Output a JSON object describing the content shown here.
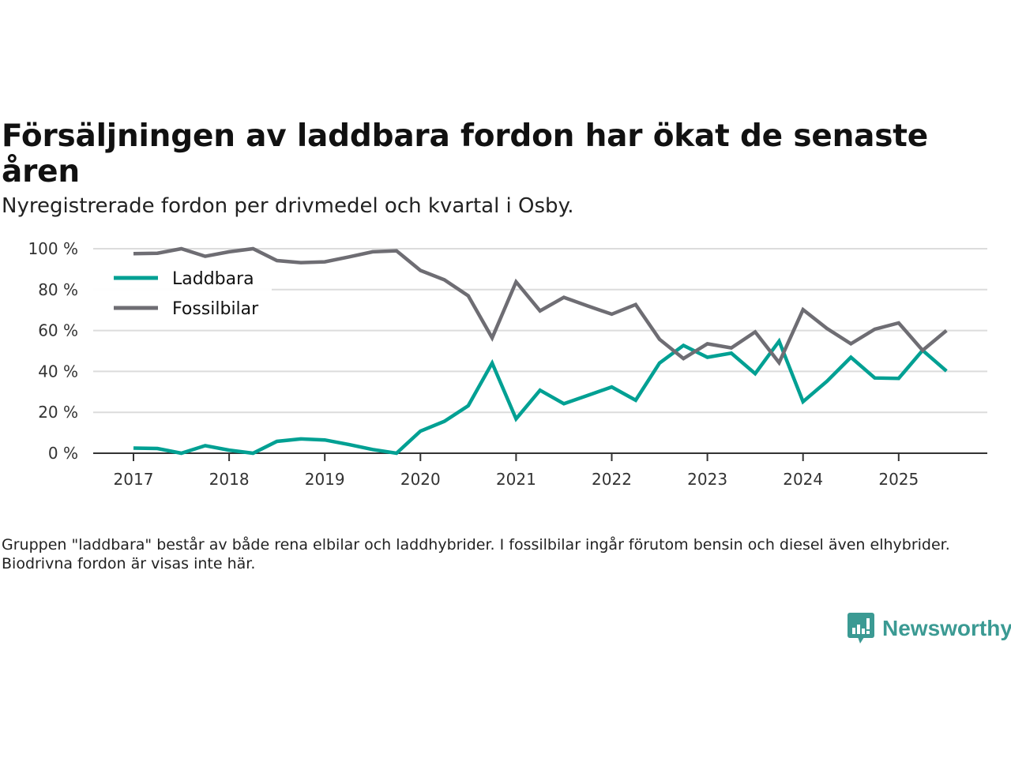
{
  "title": "Försäljningen av laddbara fordon har ökat de senaste åren",
  "subtitle": "Nyregistrerade fordon per drivmedel och kvartal i Osby.",
  "footnote": "Gruppen \"laddbara\" består av både rena elbilar och laddhybrider. I fossilbilar ingår förutom bensin och diesel även elhybrider. Biodrivna fordon är visas inte här.",
  "logo": {
    "text": "Newsworthy",
    "icon": "newsworthy-chart-bubble-icon",
    "color": "#3b9a93"
  },
  "chart_data": {
    "type": "line",
    "title": "Försäljningen av laddbara fordon har ökat de senaste åren",
    "subtitle": "Nyregistrerade fordon per drivmedel och kvartal i Osby.",
    "xlabel": "",
    "ylabel": "",
    "x": [
      "2017-Q1",
      "2017-Q2",
      "2017-Q3",
      "2017-Q4",
      "2018-Q1",
      "2018-Q2",
      "2018-Q3",
      "2018-Q4",
      "2019-Q1",
      "2019-Q2",
      "2019-Q3",
      "2019-Q4",
      "2020-Q1",
      "2020-Q2",
      "2020-Q3",
      "2020-Q4",
      "2021-Q1",
      "2021-Q2",
      "2021-Q3",
      "2021-Q4",
      "2022-Q1",
      "2022-Q2",
      "2022-Q3",
      "2022-Q4",
      "2023-Q1",
      "2023-Q2",
      "2023-Q3",
      "2023-Q4",
      "2024-Q1",
      "2024-Q2",
      "2024-Q3",
      "2024-Q4",
      "2025-Q1",
      "2025-Q2",
      "2025-Q3"
    ],
    "xticks": [
      "2017",
      "2018",
      "2019",
      "2020",
      "2021",
      "2022",
      "2023",
      "2024",
      "2025"
    ],
    "yticks": [
      "0 %",
      "20 %",
      "40 %",
      "60 %",
      "80 %",
      "100 %"
    ],
    "ytick_values": [
      0,
      20,
      40,
      60,
      80,
      100
    ],
    "ylim": [
      0,
      100
    ],
    "grid": true,
    "legend_position": "top-left",
    "series": [
      {
        "name": "Laddbara",
        "color": "#00a093",
        "values": [
          2.5,
          2.3,
          0,
          3.7,
          1.5,
          0,
          5.8,
          7.0,
          6.5,
          4.3,
          1.8,
          0,
          10.8,
          15.6,
          23.2,
          44.1,
          16.8,
          30.8,
          24.2,
          28.3,
          32.4,
          25.9,
          44.1,
          52.7,
          46.9,
          48.9,
          38.9,
          54.8,
          25.2,
          35.2,
          46.9,
          36.8,
          36.6,
          50.3,
          40.2
        ]
      },
      {
        "name": "Fossilbilar",
        "color": "#6e6d73",
        "values": [
          97.6,
          97.8,
          100,
          96.3,
          98.5,
          100,
          94.2,
          93.2,
          93.6,
          96.0,
          98.5,
          99.0,
          89.4,
          84.8,
          77.0,
          56.4,
          83.8,
          69.6,
          76.2,
          72.0,
          68.0,
          72.7,
          55.7,
          46.3,
          53.5,
          51.5,
          59.3,
          44.3,
          70.2,
          61.0,
          53.5,
          60.6,
          63.7,
          50.3,
          60.0
        ]
      }
    ]
  }
}
